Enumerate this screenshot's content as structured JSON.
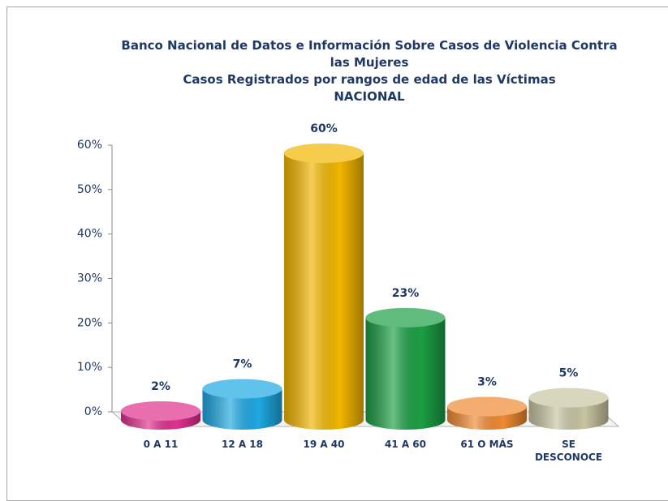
{
  "chart_data": {
    "type": "bar",
    "title": [
      "Banco Nacional de Datos e Información Sobre Casos de Violencia Contra las Mujeres",
      "Casos Registrados por rangos de edad de las Víctimas",
      "NACIONAL"
    ],
    "categories": [
      "0 A 11",
      "12 A 18",
      "19 A 40",
      "41 A 60",
      "61 O MÁS",
      "SE DESCONOCE"
    ],
    "values": [
      2,
      7,
      60,
      23,
      3,
      5
    ],
    "value_labels": [
      "2%",
      "7%",
      "60%",
      "23%",
      "3%",
      "5%"
    ],
    "colors": [
      "#e0308f",
      "#1ea8e2",
      "#f2b600",
      "#1c9e44",
      "#ef8a32",
      "#c9c5a2"
    ],
    "ylim": [
      0,
      60
    ],
    "yticks": [
      {
        "value": 0,
        "label": "0%"
      },
      {
        "value": 10,
        "label": "10%"
      },
      {
        "value": 20,
        "label": "20%"
      },
      {
        "value": 30,
        "label": "30%"
      },
      {
        "value": 40,
        "label": "40%"
      },
      {
        "value": 50,
        "label": "50%"
      },
      {
        "value": 60,
        "label": "60%"
      }
    ]
  }
}
